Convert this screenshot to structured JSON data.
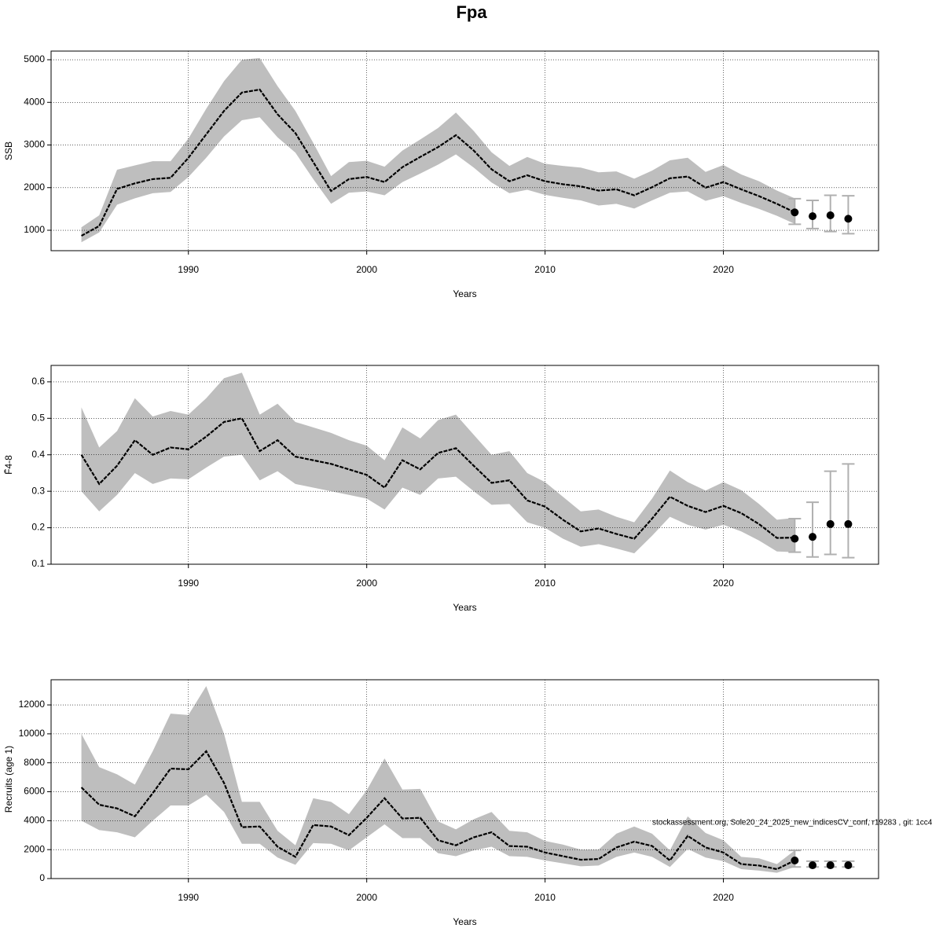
{
  "title": "Fpa",
  "footer": "stockassessment.org, Sole20_24_2025_new_indicesCV_conf, r19283 , git: 1cc4",
  "chart_data": [
    {
      "type": "line",
      "xlabel": "Years",
      "ylabel": "SSB",
      "grid": true,
      "line_color": "#000000",
      "band_color": "#bebebe",
      "errorbar_color": "#b0b0b0",
      "xlim": [
        1982.3,
        2028.7
      ],
      "xticks": [
        1990,
        2000,
        2010,
        2020
      ],
      "ylim": [
        521,
        5203
      ],
      "yticks": [
        1000,
        2000,
        3000,
        4000,
        5000
      ],
      "x": [
        1984,
        1985,
        1986,
        1987,
        1988,
        1989,
        1990,
        1991,
        1992,
        1993,
        1994,
        1995,
        1996,
        1997,
        1998,
        1999,
        2000,
        2001,
        2002,
        2003,
        2004,
        2005,
        2006,
        2007,
        2008,
        2009,
        2010,
        2011,
        2012,
        2013,
        2014,
        2015,
        2016,
        2017,
        2018,
        2019,
        2020,
        2021,
        2022,
        2023,
        2024
      ],
      "values": [
        870,
        1100,
        1970,
        2100,
        2200,
        2230,
        2700,
        3250,
        3800,
        4230,
        4300,
        3720,
        3280,
        2600,
        1920,
        2200,
        2250,
        2130,
        2480,
        2720,
        2950,
        3230,
        2870,
        2430,
        2150,
        2290,
        2150,
        2080,
        2030,
        1930,
        1960,
        1820,
        2010,
        2220,
        2260,
        2000,
        2130,
        1960,
        1800,
        1620,
        1420
      ],
      "lower": [
        720,
        950,
        1600,
        1750,
        1870,
        1900,
        2250,
        2700,
        3200,
        3580,
        3650,
        3180,
        2820,
        2200,
        1620,
        1880,
        1910,
        1820,
        2130,
        2330,
        2540,
        2780,
        2470,
        2120,
        1870,
        1950,
        1830,
        1760,
        1700,
        1580,
        1620,
        1510,
        1700,
        1880,
        1910,
        1690,
        1800,
        1640,
        1500,
        1340,
        1150
      ],
      "upper": [
        1070,
        1350,
        2420,
        2520,
        2620,
        2620,
        3150,
        3850,
        4500,
        5000,
        5040,
        4380,
        3800,
        3050,
        2270,
        2600,
        2630,
        2490,
        2870,
        3130,
        3400,
        3760,
        3330,
        2830,
        2510,
        2720,
        2560,
        2510,
        2470,
        2360,
        2380,
        2210,
        2400,
        2640,
        2700,
        2370,
        2530,
        2310,
        2150,
        1930,
        1750
      ],
      "forecast": {
        "x": [
          2024,
          2025,
          2026,
          2027
        ],
        "values": [
          1420,
          1330,
          1350,
          1270
        ],
        "lower": [
          1140,
          1040,
          970,
          920
        ],
        "upper": [
          1740,
          1700,
          1820,
          1810
        ]
      }
    },
    {
      "type": "line",
      "xlabel": "Years",
      "ylabel": "F̄4-8",
      "grid": true,
      "line_color": "#000000",
      "band_color": "#bebebe",
      "errorbar_color": "#b0b0b0",
      "xlim": [
        1982.3,
        2028.7
      ],
      "xticks": [
        1990,
        2000,
        2010,
        2020
      ],
      "ylim": [
        0.1,
        0.645
      ],
      "yticks": [
        0.1,
        0.2,
        0.3,
        0.4,
        0.5,
        0.6
      ],
      "x": [
        1984,
        1985,
        1986,
        1987,
        1988,
        1989,
        1990,
        1991,
        1992,
        1993,
        1994,
        1995,
        1996,
        1997,
        1998,
        1999,
        2000,
        2001,
        2002,
        2003,
        2004,
        2005,
        2006,
        2007,
        2008,
        2009,
        2010,
        2011,
        2012,
        2013,
        2014,
        2015,
        2016,
        2017,
        2018,
        2019,
        2020,
        2021,
        2022,
        2023,
        2024
      ],
      "values": [
        0.4,
        0.32,
        0.37,
        0.44,
        0.4,
        0.42,
        0.415,
        0.45,
        0.49,
        0.5,
        0.41,
        0.44,
        0.395,
        0.385,
        0.375,
        0.36,
        0.345,
        0.31,
        0.385,
        0.36,
        0.405,
        0.418,
        0.37,
        0.323,
        0.33,
        0.275,
        0.258,
        0.222,
        0.19,
        0.198,
        0.183,
        0.17,
        0.225,
        0.285,
        0.26,
        0.243,
        0.26,
        0.24,
        0.21,
        0.172,
        0.173
      ],
      "lower": [
        0.3,
        0.245,
        0.29,
        0.35,
        0.32,
        0.335,
        0.333,
        0.365,
        0.395,
        0.4,
        0.33,
        0.355,
        0.32,
        0.31,
        0.3,
        0.29,
        0.28,
        0.25,
        0.31,
        0.29,
        0.335,
        0.34,
        0.3,
        0.263,
        0.265,
        0.215,
        0.2,
        0.17,
        0.148,
        0.155,
        0.143,
        0.13,
        0.178,
        0.23,
        0.208,
        0.195,
        0.208,
        0.19,
        0.165,
        0.135,
        0.133
      ],
      "upper": [
        0.53,
        0.42,
        0.465,
        0.555,
        0.505,
        0.52,
        0.51,
        0.555,
        0.61,
        0.625,
        0.51,
        0.54,
        0.49,
        0.475,
        0.46,
        0.44,
        0.425,
        0.385,
        0.475,
        0.445,
        0.495,
        0.51,
        0.455,
        0.4,
        0.41,
        0.35,
        0.325,
        0.285,
        0.245,
        0.25,
        0.23,
        0.215,
        0.28,
        0.357,
        0.325,
        0.302,
        0.325,
        0.303,
        0.265,
        0.222,
        0.227
      ],
      "forecast": {
        "x": [
          2024,
          2025,
          2026,
          2027
        ],
        "values": [
          0.17,
          0.175,
          0.21,
          0.21
        ],
        "lower": [
          0.133,
          0.12,
          0.127,
          0.118
        ],
        "upper": [
          0.225,
          0.27,
          0.355,
          0.375
        ]
      }
    },
    {
      "type": "line",
      "xlabel": "Years",
      "ylabel": "Recruits (age 1)",
      "grid": true,
      "line_color": "#000000",
      "band_color": "#bebebe",
      "errorbar_color": "#b0b0b0",
      "xlim": [
        1982.3,
        2028.7
      ],
      "xticks": [
        1990,
        2000,
        2010,
        2020
      ],
      "ylim": [
        0,
        13740
      ],
      "yticks": [
        0,
        2000,
        4000,
        6000,
        8000,
        10000,
        12000
      ],
      "x": [
        1984,
        1985,
        1986,
        1987,
        1988,
        1989,
        1990,
        1991,
        1992,
        1993,
        1994,
        1995,
        1996,
        1997,
        1998,
        1999,
        2000,
        2001,
        2002,
        2003,
        2004,
        2005,
        2006,
        2007,
        2008,
        2009,
        2010,
        2011,
        2012,
        2013,
        2014,
        2015,
        2016,
        2017,
        2018,
        2019,
        2020,
        2021,
        2022,
        2023,
        2024
      ],
      "values": [
        6300,
        5100,
        4850,
        4300,
        5900,
        7600,
        7550,
        8800,
        6600,
        3550,
        3600,
        2200,
        1500,
        3700,
        3600,
        3000,
        4200,
        5550,
        4150,
        4200,
        2650,
        2300,
        2850,
        3200,
        2250,
        2200,
        1800,
        1550,
        1300,
        1350,
        2150,
        2550,
        2250,
        1250,
        2950,
        2150,
        1800,
        1000,
        900,
        650,
        1250
      ],
      "lower": [
        4000,
        3350,
        3200,
        2850,
        4000,
        5050,
        5050,
        5800,
        4600,
        2400,
        2400,
        1450,
        950,
        2450,
        2400,
        1950,
        2850,
        3750,
        2800,
        2800,
        1750,
        1550,
        1950,
        2200,
        1550,
        1500,
        1250,
        1050,
        850,
        900,
        1500,
        1800,
        1500,
        800,
        2050,
        1450,
        1200,
        650,
        550,
        400,
        800
      ],
      "upper": [
        10000,
        7700,
        7200,
        6500,
        8800,
        11400,
        11300,
        13300,
        10000,
        5300,
        5300,
        3300,
        2300,
        5550,
        5300,
        4450,
        6100,
        8300,
        6150,
        6200,
        3950,
        3400,
        4100,
        4600,
        3300,
        3200,
        2600,
        2350,
        2000,
        2000,
        3100,
        3600,
        3100,
        1950,
        4300,
        3150,
        2650,
        1500,
        1400,
        1000,
        1950
      ],
      "forecast": {
        "x": [
          2024,
          2025,
          2026,
          2027
        ],
        "values": [
          1250,
          920,
          920,
          920
        ],
        "lower": [
          800,
          800,
          800,
          800
        ],
        "upper": [
          1950,
          1200,
          1200,
          1200
        ]
      }
    }
  ]
}
